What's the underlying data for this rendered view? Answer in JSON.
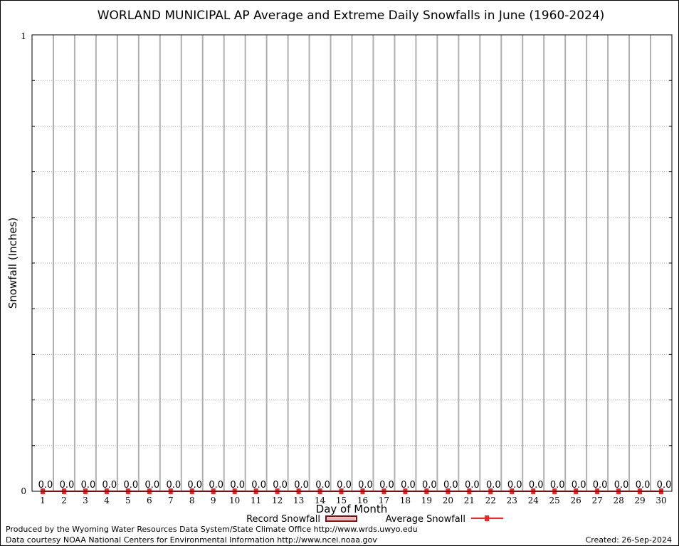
{
  "chart_data": {
    "type": "bar",
    "title": "WORLAND MUNICIPAL AP Average and Extreme Daily Snowfalls in June (1960-2024)",
    "xlabel": "Day of Month",
    "ylabel": "Snowfall (Inches)",
    "xlim": [
      0.5,
      30.5
    ],
    "ylim": [
      0,
      1
    ],
    "y_tick_labels": [
      "0",
      "1"
    ],
    "grid": true,
    "categories": [
      "1",
      "2",
      "3",
      "4",
      "5",
      "6",
      "7",
      "8",
      "9",
      "10",
      "11",
      "12",
      "13",
      "14",
      "15",
      "16",
      "17",
      "18",
      "19",
      "20",
      "21",
      "22",
      "23",
      "24",
      "25",
      "26",
      "27",
      "28",
      "29",
      "30"
    ],
    "series": [
      {
        "name": "Record Snowfall",
        "type": "bar",
        "color": "#990000",
        "values": [
          0,
          0,
          0,
          0,
          0,
          0,
          0,
          0,
          0,
          0,
          0,
          0,
          0,
          0,
          0,
          0,
          0,
          0,
          0,
          0,
          0,
          0,
          0,
          0,
          0,
          0,
          0,
          0,
          0,
          0
        ]
      },
      {
        "name": "Average Snowfall",
        "type": "line",
        "color": "#ff2020",
        "values": [
          0,
          0,
          0,
          0,
          0,
          0,
          0,
          0,
          0,
          0,
          0,
          0,
          0,
          0,
          0,
          0,
          0,
          0,
          0,
          0,
          0,
          0,
          0,
          0,
          0,
          0,
          0,
          0,
          0,
          0
        ]
      }
    ],
    "data_labels": [
      "0.0",
      "0.0",
      "0.0",
      "0.0",
      "0.0",
      "0.0",
      "0.0",
      "0.0",
      "0.0",
      "0.0",
      "0.0",
      "0.0",
      "0.0",
      "0.0",
      "0.0",
      "0.0",
      "0.0",
      "0.0",
      "0.0",
      "0.0",
      "0.0",
      "0.0",
      "0.0",
      "0.0",
      "0.0",
      "0.0",
      "0.0",
      "0.0",
      "0.0",
      "0.0"
    ],
    "legend_position": "bottom"
  },
  "footer": {
    "produced_by": "Produced by the Wyoming Water Resources Data System/State Climate Office http://www.wrds.uwyo.edu",
    "data_courtesy": "Data courtesy NOAA National Centers for Environmental Information http://www.ncei.noaa.gov",
    "created": "Created: 26-Sep-2024"
  }
}
